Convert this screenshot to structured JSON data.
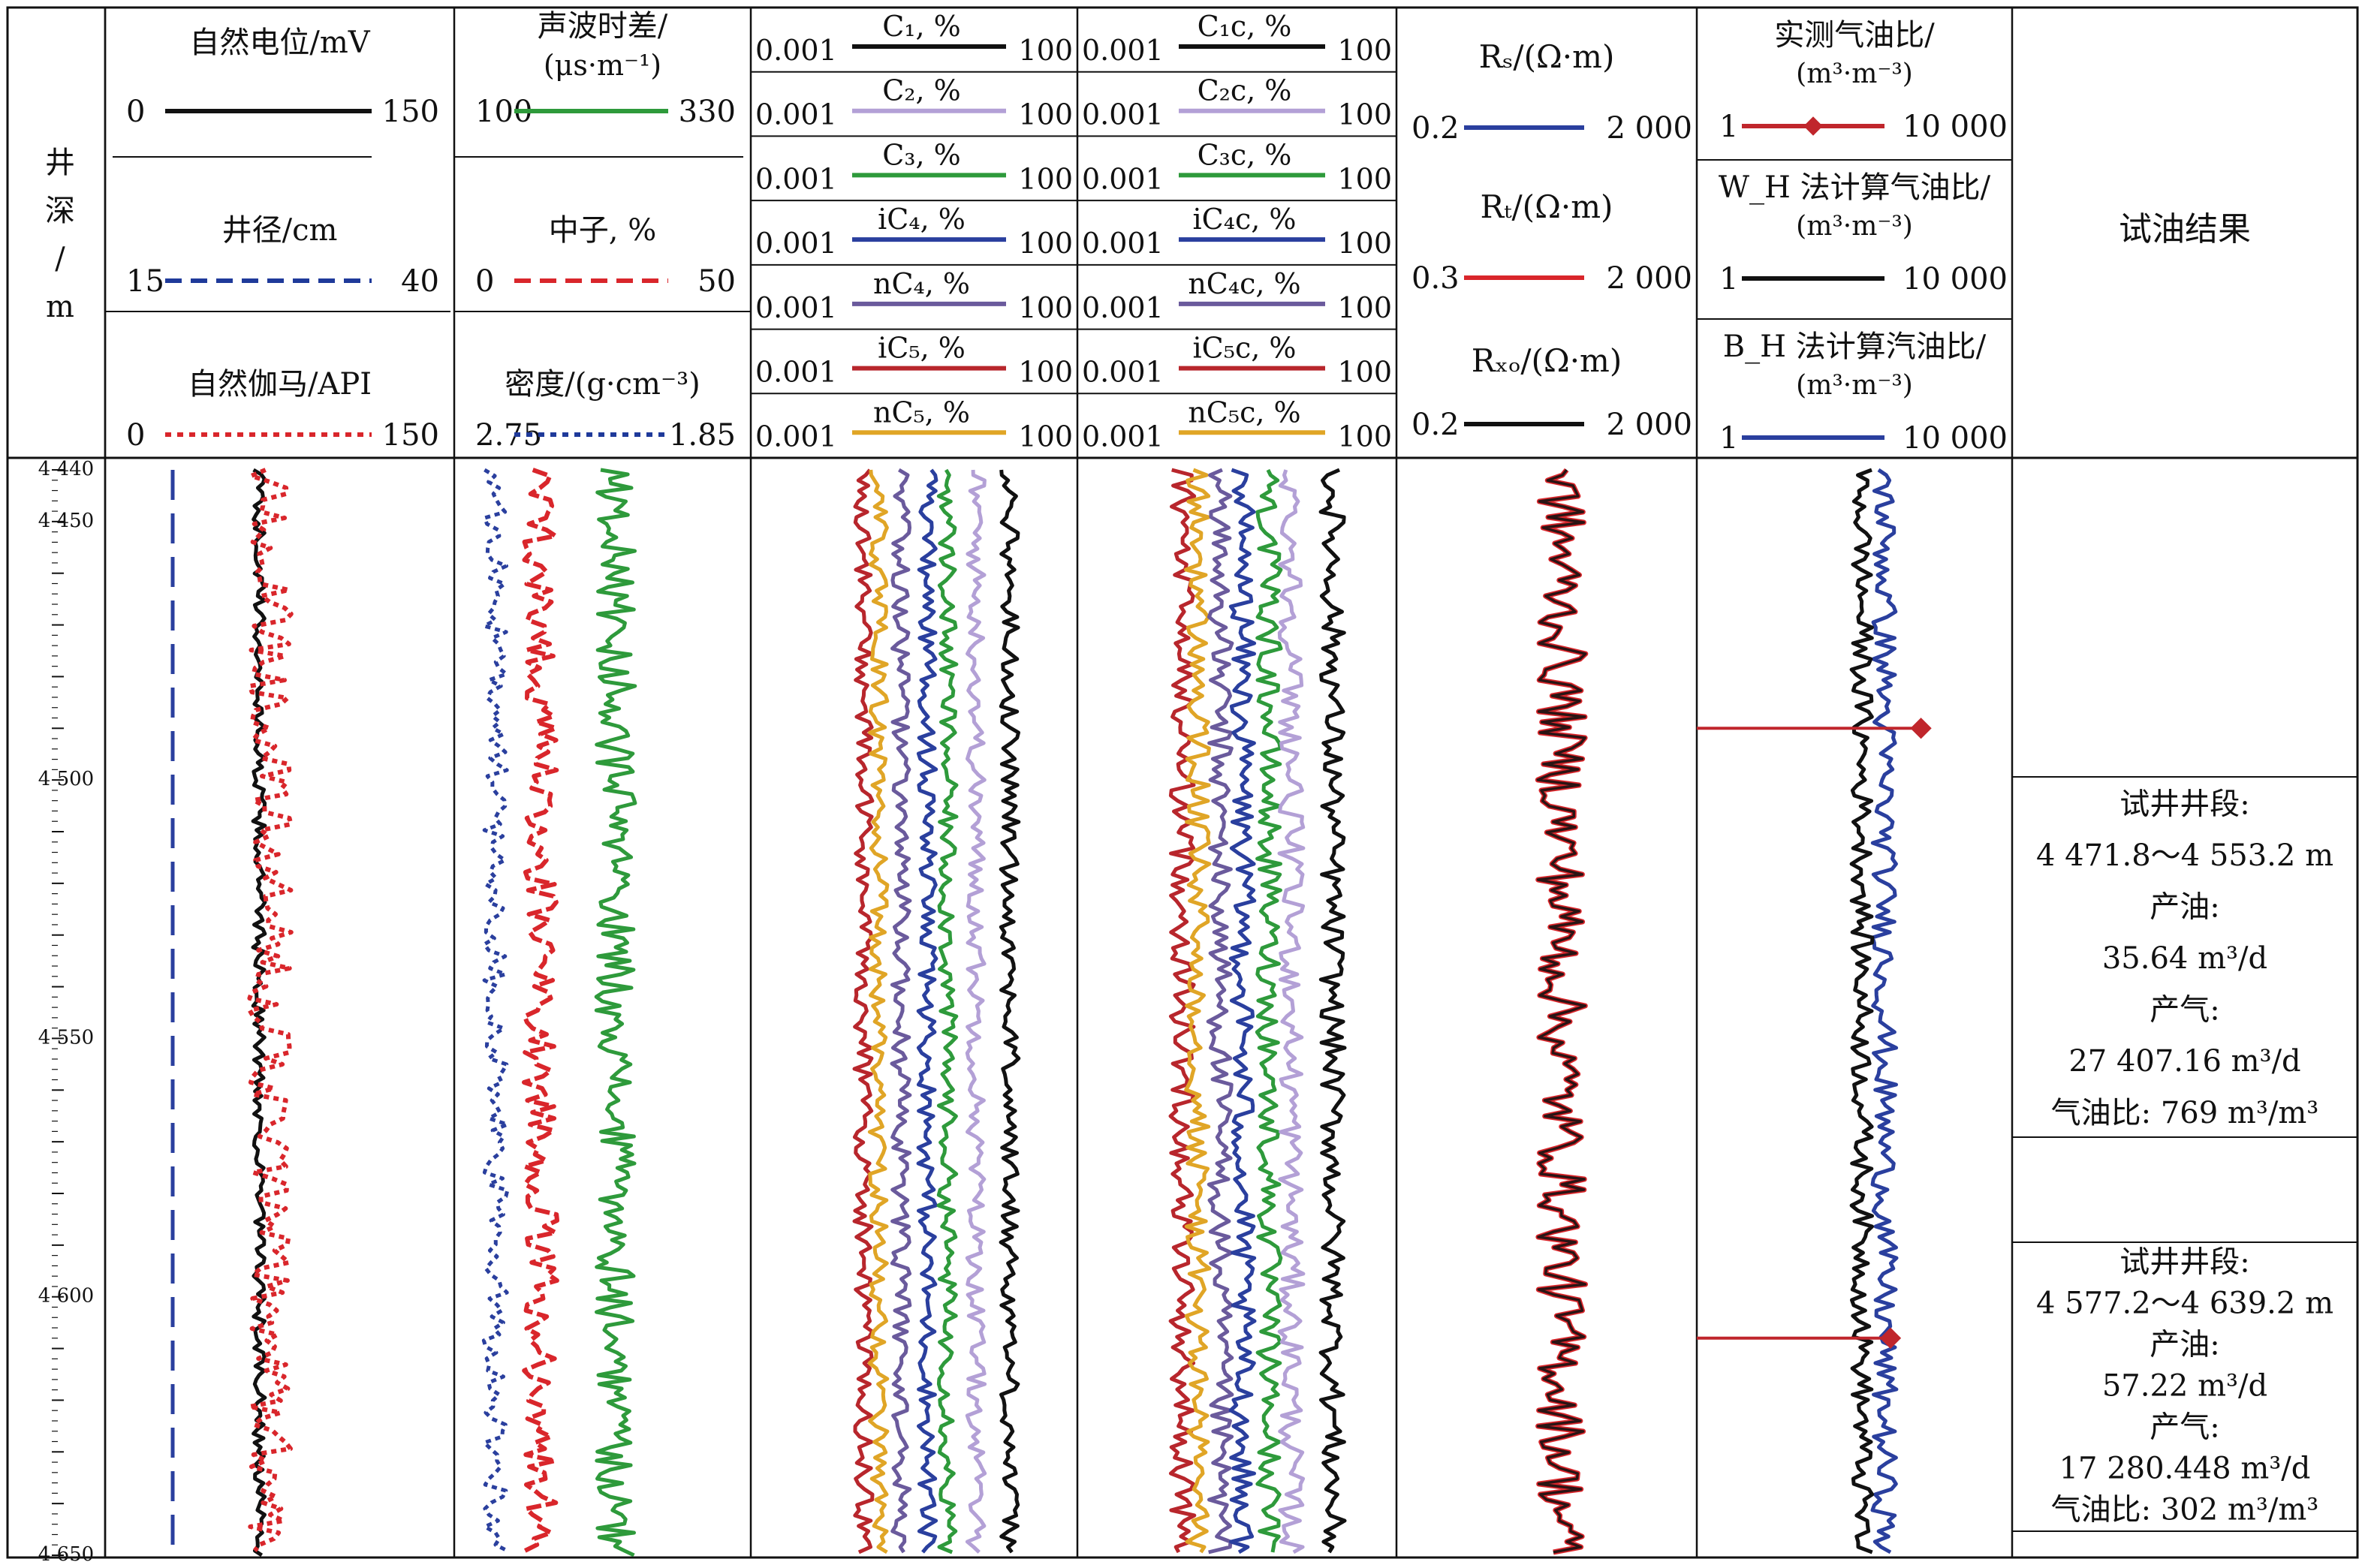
{
  "chart_data": {
    "type": "line",
    "depth_axis": {
      "label_lines": [
        "井",
        "深",
        "/",
        "m"
      ],
      "range": [
        4440,
        4650
      ],
      "ticks": [
        "4 440",
        "4 450",
        "4 500",
        "4 550",
        "4 600",
        "4 650"
      ],
      "tick_values": [
        4440,
        4450,
        4500,
        4550,
        4600,
        4650
      ]
    },
    "tracks": [
      {
        "curves": [
          {
            "name": "自然电位/mV",
            "min": "0",
            "max": "150",
            "color": "#111111",
            "style": "solid"
          },
          {
            "name": "井径/cm",
            "min": "15",
            "max": "40",
            "color": "#1f3a9a",
            "style": "dashed"
          },
          {
            "name": "自然伽马/API",
            "min": "0",
            "max": "150",
            "color": "#d9262b",
            "style": "dotted"
          }
        ]
      },
      {
        "curves": [
          {
            "name": "声波时差/",
            "unit": "(μs·m⁻¹)",
            "min": "100",
            "max": "330",
            "color": "#2e9a3b",
            "style": "solid"
          },
          {
            "name": "中子, %",
            "min": "0",
            "max": "50",
            "color": "#d9262b",
            "style": "dashed"
          },
          {
            "name": "密度/(g·cm⁻³)",
            "min": "2.75",
            "max": "1.85",
            "color": "#1f3a9a",
            "style": "dotted"
          }
        ]
      },
      {
        "curves": [
          {
            "name": "C₁, %",
            "min": "0.001",
            "max": "100",
            "color": "#111111"
          },
          {
            "name": "C₂, %",
            "min": "0.001",
            "max": "100",
            "color": "#b3a0d6"
          },
          {
            "name": "C₃, %",
            "min": "0.001",
            "max": "100",
            "color": "#2e9a3b"
          },
          {
            "name": "iC₄, %",
            "min": "0.001",
            "max": "100",
            "color": "#2a3f9e"
          },
          {
            "name": "nC₄, %",
            "min": "0.001",
            "max": "100",
            "color": "#6a5a9c"
          },
          {
            "name": "iC₅, %",
            "min": "0.001",
            "max": "100",
            "color": "#b8262c"
          },
          {
            "name": "nC₅, %",
            "min": "0.001",
            "max": "100",
            "color": "#e0a526"
          }
        ]
      },
      {
        "curves": [
          {
            "name": "C₁c, %",
            "min": "0.001",
            "max": "100",
            "color": "#111111"
          },
          {
            "name": "C₂c, %",
            "min": "0.001",
            "max": "100",
            "color": "#b3a0d6"
          },
          {
            "name": "C₃c, %",
            "min": "0.001",
            "max": "100",
            "color": "#2e9a3b"
          },
          {
            "name": "iC₄c, %",
            "min": "0.001",
            "max": "100",
            "color": "#2a3f9e"
          },
          {
            "name": "nC₄c, %",
            "min": "0.001",
            "max": "100",
            "color": "#6a5a9c"
          },
          {
            "name": "iC₅c, %",
            "min": "0.001",
            "max": "100",
            "color": "#b8262c"
          },
          {
            "name": "nC₅c, %",
            "min": "0.001",
            "max": "100",
            "color": "#e0a526"
          }
        ]
      },
      {
        "curves": [
          {
            "name": "Rₛ/(Ω·m)",
            "min": "0.2",
            "max": "2 000",
            "color": "#2a3f9e"
          },
          {
            "name": "Rₜ/(Ω·m)",
            "min": "0.3",
            "max": "2 000",
            "color": "#d9262b"
          },
          {
            "name": "Rₓₒ/(Ω·m)",
            "min": "0.2",
            "max": "2 000",
            "color": "#111111"
          }
        ]
      },
      {
        "curves": [
          {
            "name": "实测气油比/",
            "unit": "(m³·m⁻³)",
            "min": "1",
            "max": "10 000",
            "color": "#c0262c",
            "style": "line-diamond"
          },
          {
            "name": "W_H 法计算气油比/",
            "unit": "(m³·m⁻³)",
            "min": "1",
            "max": "10 000",
            "color": "#111111"
          },
          {
            "name": "B_H 法计算汽油比/",
            "unit": "(m³·m⁻³)",
            "min": "1",
            "max": "10 000",
            "color": "#2a3f9e"
          }
        ],
        "measured_points": [
          {
            "depth": 4490,
            "gor": 769
          },
          {
            "depth": 4608,
            "gor": 302
          }
        ]
      },
      {
        "title": "试油结果",
        "results": [
          {
            "depth_range": [
              4471.8,
              4553.2
            ],
            "lines": [
              "试井井段:",
              "4 471.8～4 553.2 m",
              "产油:",
              "35.64 m³/d",
              "产气:",
              "27 407.16 m³/d",
              "气油比: 769 m³/m³"
            ]
          },
          {
            "depth_range": [
              4577.2,
              4639.2
            ],
            "lines": [
              "试井井段:",
              "4 577.2～4 639.2 m",
              "产油:",
              "57.22 m³/d",
              "产气:",
              "17 280.448 m³/d",
              "气油比: 302 m³/m³"
            ]
          }
        ]
      }
    ]
  }
}
